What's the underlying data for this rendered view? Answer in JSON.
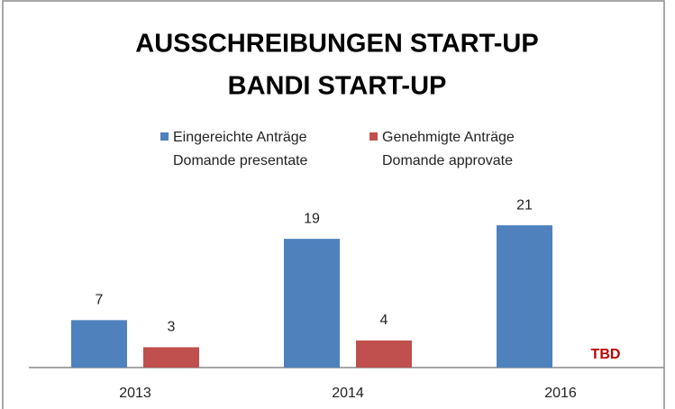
{
  "chart_data": {
    "type": "bar",
    "title": [
      "AUSSCHREIBUNGEN START-UP",
      "BANDI START-UP"
    ],
    "categories": [
      "2013",
      "2014",
      "2016"
    ],
    "series": [
      {
        "name": [
          "Eingereichte Anträge",
          "Domande presentate"
        ],
        "color": "#4f81bd",
        "values": [
          7,
          19,
          21
        ]
      },
      {
        "name": [
          "Genehmigte Anträge",
          "Domande approvate"
        ],
        "color": "#c0504d",
        "values": [
          3,
          4,
          null
        ],
        "value_labels": [
          null,
          null,
          "TBD"
        ]
      }
    ],
    "ylim": [
      0,
      25
    ]
  }
}
